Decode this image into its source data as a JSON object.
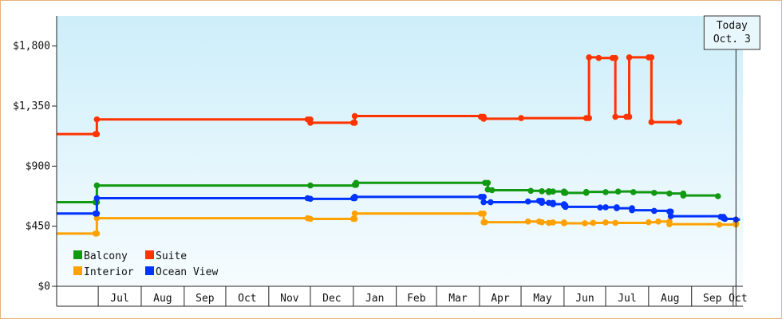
{
  "chart_data": {
    "type": "line",
    "step": true,
    "x_unit": "date",
    "x_range": [
      "2015-06-01",
      "2016-10-08"
    ],
    "ylim": [
      0,
      2025
    ],
    "y_ticks": [
      {
        "value": 0,
        "label": "$0"
      },
      {
        "value": 450,
        "label": "$450"
      },
      {
        "value": 900,
        "label": "$900"
      },
      {
        "value": 1350,
        "label": "$1,350"
      },
      {
        "value": 1800,
        "label": "$1,800"
      }
    ],
    "x_ticks": [
      {
        "label": "Jul",
        "start": "2015-07-01",
        "end": "2015-08-01"
      },
      {
        "label": "Aug",
        "start": "2015-08-01",
        "end": "2015-09-01"
      },
      {
        "label": "Sep",
        "start": "2015-09-01",
        "end": "2015-10-01"
      },
      {
        "label": "Oct",
        "start": "2015-10-01",
        "end": "2015-11-01"
      },
      {
        "label": "Nov",
        "start": "2015-11-01",
        "end": "2015-12-01"
      },
      {
        "label": "Dec",
        "start": "2015-12-01",
        "end": "2016-01-01"
      },
      {
        "label": "Jan",
        "start": "2016-01-01",
        "end": "2016-02-01"
      },
      {
        "label": "Feb",
        "start": "2016-02-01",
        "end": "2016-03-01"
      },
      {
        "label": "Mar",
        "start": "2016-03-01",
        "end": "2016-04-01"
      },
      {
        "label": "Apr",
        "start": "2016-04-01",
        "end": "2016-05-01"
      },
      {
        "label": "May",
        "start": "2016-05-01",
        "end": "2016-06-01"
      },
      {
        "label": "Jun",
        "start": "2016-06-01",
        "end": "2016-07-01"
      },
      {
        "label": "Jul",
        "start": "2016-07-01",
        "end": "2016-08-01"
      },
      {
        "label": "Aug",
        "start": "2016-08-01",
        "end": "2016-09-01"
      },
      {
        "label": "Sep",
        "start": "2016-09-01",
        "end": "2016-10-01"
      },
      {
        "label": "Oct",
        "start": "2016-10-01",
        "end": "2016-10-08"
      }
    ],
    "today": {
      "line1": "Today",
      "line2": "Oct. 3",
      "date": "2016-10-03"
    },
    "grid": false,
    "legend_position": "bottom-left",
    "series": [
      {
        "name": "Balcony",
        "color": "#119911",
        "points": [
          [
            "2015-06-01",
            630
          ],
          [
            "2015-06-29",
            630
          ],
          [
            "2015-06-30",
            755
          ],
          [
            "2015-12-01",
            755
          ],
          [
            "2016-01-02",
            760
          ],
          [
            "2016-01-03",
            775
          ],
          [
            "2016-04-05",
            775
          ],
          [
            "2016-04-07",
            725
          ],
          [
            "2016-04-10",
            720
          ],
          [
            "2016-05-08",
            715
          ],
          [
            "2016-05-16",
            712
          ],
          [
            "2016-05-21",
            705
          ],
          [
            "2016-05-24",
            710
          ],
          [
            "2016-06-01",
            700
          ],
          [
            "2016-06-02",
            700
          ],
          [
            "2016-06-17",
            707
          ],
          [
            "2016-07-01",
            705
          ],
          [
            "2016-07-10",
            710
          ],
          [
            "2016-07-21",
            705
          ],
          [
            "2016-08-05",
            700
          ],
          [
            "2016-08-16",
            695
          ],
          [
            "2016-08-26",
            680
          ],
          [
            "2016-09-20",
            675
          ]
        ]
      },
      {
        "name": "Suite",
        "color": "#ff3300",
        "points": [
          [
            "2015-06-01",
            1140
          ],
          [
            "2015-06-29",
            1140
          ],
          [
            "2015-06-30",
            1250
          ],
          [
            "2015-11-29",
            1250
          ],
          [
            "2015-12-01",
            1225
          ],
          [
            "2016-01-01",
            1225
          ],
          [
            "2016-01-02",
            1275
          ],
          [
            "2016-04-02",
            1270
          ],
          [
            "2016-04-04",
            1255
          ],
          [
            "2016-05-01",
            1260
          ],
          [
            "2016-06-17",
            1260
          ],
          [
            "2016-06-19",
            1715
          ],
          [
            "2016-06-26",
            1710
          ],
          [
            "2016-07-06",
            1710
          ],
          [
            "2016-07-08",
            1270
          ],
          [
            "2016-07-16",
            1270
          ],
          [
            "2016-07-18",
            1715
          ],
          [
            "2016-08-01",
            1715
          ],
          [
            "2016-08-03",
            1230
          ],
          [
            "2016-08-23",
            1230
          ]
        ]
      },
      {
        "name": "Interior",
        "color": "#ffa100",
        "points": [
          [
            "2015-06-01",
            395
          ],
          [
            "2015-06-29",
            395
          ],
          [
            "2015-06-30",
            510
          ],
          [
            "2015-11-29",
            510
          ],
          [
            "2015-12-01",
            505
          ],
          [
            "2016-01-01",
            505
          ],
          [
            "2016-01-02",
            545
          ],
          [
            "2016-04-02",
            545
          ],
          [
            "2016-04-04",
            480
          ],
          [
            "2016-04-05",
            480
          ],
          [
            "2016-05-06",
            485
          ],
          [
            "2016-05-14",
            485
          ],
          [
            "2016-05-16",
            480
          ],
          [
            "2016-05-21",
            475
          ],
          [
            "2016-05-24",
            478
          ],
          [
            "2016-06-01",
            472
          ],
          [
            "2016-06-16",
            472
          ],
          [
            "2016-06-22",
            475
          ],
          [
            "2016-07-01",
            478
          ],
          [
            "2016-07-08",
            475
          ],
          [
            "2016-08-01",
            480
          ],
          [
            "2016-08-08",
            485
          ],
          [
            "2016-08-16",
            465
          ],
          [
            "2016-09-21",
            462
          ],
          [
            "2016-10-03",
            475
          ]
        ]
      },
      {
        "name": "Ocean View",
        "color": "#0033ff",
        "points": [
          [
            "2015-06-01",
            545
          ],
          [
            "2015-06-29",
            545
          ],
          [
            "2015-06-30",
            660
          ],
          [
            "2015-11-29",
            660
          ],
          [
            "2015-12-01",
            655
          ],
          [
            "2016-01-01",
            660
          ],
          [
            "2016-01-02",
            670
          ],
          [
            "2016-04-02",
            670
          ],
          [
            "2016-04-04",
            630
          ],
          [
            "2016-04-09",
            630
          ],
          [
            "2016-05-06",
            635
          ],
          [
            "2016-05-14",
            640
          ],
          [
            "2016-05-16",
            625
          ],
          [
            "2016-05-21",
            625
          ],
          [
            "2016-05-24",
            615
          ],
          [
            "2016-06-01",
            605
          ],
          [
            "2016-06-02",
            595
          ],
          [
            "2016-06-27",
            590
          ],
          [
            "2016-07-01",
            592
          ],
          [
            "2016-07-09",
            585
          ],
          [
            "2016-07-20",
            570
          ],
          [
            "2016-08-05",
            565
          ],
          [
            "2016-08-16",
            560
          ],
          [
            "2016-08-17",
            525
          ],
          [
            "2016-09-22",
            520
          ],
          [
            "2016-09-24",
            510
          ],
          [
            "2016-09-25",
            505
          ],
          [
            "2016-10-03",
            500
          ]
        ],
        "projection": [
          [
            "2016-10-03",
            500
          ],
          [
            "2016-10-08",
            500
          ]
        ]
      }
    ]
  }
}
